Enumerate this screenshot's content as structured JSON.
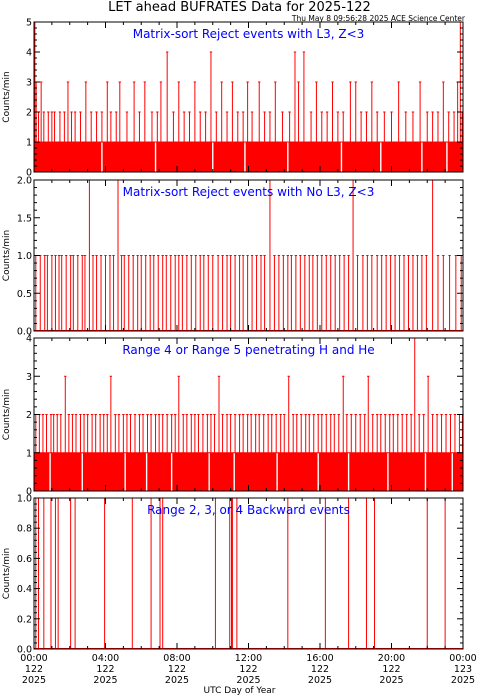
{
  "page": {
    "title": "LET ahead BUFRATES Data for 2025-122",
    "timestamp": "Thu May  8 09:56:28 2025 ACE Science Center",
    "x_axis_title": "UTC Day of Year"
  },
  "colors": {
    "data": "#ff0000",
    "annotation": "#0000ff",
    "axis": "#000000"
  },
  "chart_data": [
    {
      "type": "line",
      "title": "Matrix-sort Reject events with L3, Z<3",
      "ylabel": "Counts/min",
      "xlim": [
        0,
        24
      ],
      "ylim": [
        0,
        5
      ],
      "yticks": [
        0,
        1,
        2,
        3,
        4,
        5
      ],
      "ytick_labels": [
        "0",
        "1",
        "2",
        "3",
        "4",
        "5"
      ],
      "baseline": 1,
      "gaps_at_zero": [
        3.8,
        6.8,
        10.0,
        11.8,
        14.2,
        17.2,
        19.4,
        21.7,
        23.1
      ],
      "spikes": [
        [
          0.05,
          5
        ],
        [
          0.12,
          3
        ],
        [
          0.25,
          2
        ],
        [
          0.4,
          3
        ],
        [
          0.55,
          2
        ],
        [
          0.8,
          2
        ],
        [
          1.0,
          2
        ],
        [
          1.15,
          2
        ],
        [
          1.45,
          2
        ],
        [
          1.7,
          2
        ],
        [
          1.9,
          3
        ],
        [
          2.1,
          2
        ],
        [
          2.3,
          2
        ],
        [
          2.6,
          2
        ],
        [
          2.9,
          3
        ],
        [
          3.2,
          2
        ],
        [
          3.5,
          2
        ],
        [
          3.8,
          2
        ],
        [
          4.1,
          3
        ],
        [
          4.3,
          2
        ],
        [
          4.6,
          2
        ],
        [
          4.8,
          3
        ],
        [
          5.2,
          2
        ],
        [
          5.6,
          3
        ],
        [
          5.9,
          2
        ],
        [
          6.2,
          3
        ],
        [
          6.6,
          2
        ],
        [
          6.9,
          2
        ],
        [
          7.1,
          3
        ],
        [
          7.45,
          4
        ],
        [
          7.8,
          2
        ],
        [
          8.1,
          3
        ],
        [
          8.4,
          2
        ],
        [
          8.7,
          2
        ],
        [
          9.0,
          3
        ],
        [
          9.3,
          2
        ],
        [
          9.6,
          2
        ],
        [
          9.9,
          4
        ],
        [
          10.2,
          2
        ],
        [
          10.5,
          3
        ],
        [
          10.8,
          2
        ],
        [
          11.1,
          3
        ],
        [
          11.4,
          2
        ],
        [
          11.7,
          2
        ],
        [
          11.95,
          3
        ],
        [
          12.2,
          2
        ],
        [
          12.6,
          3
        ],
        [
          12.9,
          2
        ],
        [
          13.2,
          2
        ],
        [
          13.5,
          3
        ],
        [
          13.9,
          2
        ],
        [
          14.3,
          2
        ],
        [
          14.6,
          4
        ],
        [
          14.8,
          3
        ],
        [
          15.1,
          4
        ],
        [
          15.5,
          2
        ],
        [
          15.8,
          3
        ],
        [
          16.1,
          2
        ],
        [
          16.4,
          2
        ],
        [
          16.7,
          3
        ],
        [
          17.0,
          2
        ],
        [
          17.3,
          2
        ],
        [
          17.7,
          3
        ],
        [
          18.0,
          3
        ],
        [
          18.3,
          2
        ],
        [
          18.6,
          2
        ],
        [
          18.9,
          3
        ],
        [
          19.2,
          2
        ],
        [
          19.6,
          2
        ],
        [
          20.0,
          2
        ],
        [
          20.4,
          3
        ],
        [
          20.8,
          2
        ],
        [
          21.2,
          2
        ],
        [
          21.6,
          3
        ],
        [
          22.0,
          2
        ],
        [
          22.3,
          2
        ],
        [
          22.6,
          2
        ],
        [
          22.9,
          3
        ],
        [
          23.2,
          2
        ],
        [
          23.5,
          2
        ],
        [
          23.7,
          3
        ],
        [
          23.85,
          5
        ],
        [
          23.95,
          2
        ]
      ]
    },
    {
      "type": "line",
      "title": "Matrix-sort Reject events with No L3, Z<3",
      "ylabel": "Counts/min",
      "xlim": [
        0,
        24
      ],
      "ylim": [
        0,
        2
      ],
      "yticks": [
        0,
        0.5,
        1,
        1.5,
        2
      ],
      "ytick_labels": [
        "0.0",
        "0.5",
        "1.0",
        "1.5",
        "2.0"
      ],
      "baseline": 0,
      "spikes": [
        [
          0.1,
          1
        ],
        [
          0.35,
          1
        ],
        [
          0.6,
          1
        ],
        [
          0.75,
          1
        ],
        [
          1.0,
          1
        ],
        [
          1.2,
          1
        ],
        [
          1.4,
          1
        ],
        [
          1.55,
          1
        ],
        [
          1.8,
          1
        ],
        [
          2.05,
          1
        ],
        [
          2.2,
          1
        ],
        [
          2.45,
          1
        ],
        [
          2.7,
          1
        ],
        [
          2.85,
          1
        ],
        [
          3.1,
          2
        ],
        [
          3.3,
          1
        ],
        [
          3.5,
          1
        ],
        [
          3.75,
          1
        ],
        [
          4.0,
          1
        ],
        [
          4.25,
          1
        ],
        [
          4.45,
          1
        ],
        [
          4.7,
          2
        ],
        [
          4.9,
          1
        ],
        [
          5.05,
          1
        ],
        [
          5.3,
          1
        ],
        [
          5.55,
          1
        ],
        [
          5.8,
          1
        ],
        [
          6.0,
          1
        ],
        [
          6.25,
          1
        ],
        [
          6.5,
          1
        ],
        [
          6.7,
          1
        ],
        [
          6.95,
          1
        ],
        [
          7.2,
          1
        ],
        [
          7.4,
          1
        ],
        [
          7.65,
          1
        ],
        [
          7.9,
          1
        ],
        [
          8.1,
          1
        ],
        [
          8.3,
          1
        ],
        [
          8.55,
          1
        ],
        [
          8.8,
          1
        ],
        [
          9.05,
          1
        ],
        [
          9.3,
          1
        ],
        [
          9.5,
          1
        ],
        [
          9.75,
          1
        ],
        [
          10.0,
          1
        ],
        [
          10.3,
          1
        ],
        [
          10.55,
          1
        ],
        [
          10.8,
          1
        ],
        [
          11.0,
          1
        ],
        [
          11.25,
          1
        ],
        [
          11.5,
          1
        ],
        [
          11.7,
          1
        ],
        [
          11.95,
          1
        ],
        [
          12.2,
          1
        ],
        [
          12.45,
          1
        ],
        [
          12.7,
          1
        ],
        [
          12.9,
          1
        ],
        [
          13.2,
          2
        ],
        [
          13.45,
          1
        ],
        [
          13.7,
          1
        ],
        [
          13.95,
          1
        ],
        [
          14.2,
          1
        ],
        [
          14.4,
          1
        ],
        [
          14.65,
          1
        ],
        [
          14.9,
          1
        ],
        [
          15.15,
          1
        ],
        [
          15.4,
          1
        ],
        [
          15.6,
          1
        ],
        [
          15.85,
          1
        ],
        [
          16.1,
          1
        ],
        [
          16.35,
          1
        ],
        [
          16.6,
          1
        ],
        [
          16.85,
          1
        ],
        [
          17.1,
          1
        ],
        [
          17.35,
          1
        ],
        [
          17.6,
          1
        ],
        [
          17.85,
          2
        ],
        [
          18.1,
          1
        ],
        [
          18.4,
          1
        ],
        [
          18.65,
          1
        ],
        [
          18.9,
          1
        ],
        [
          19.2,
          1
        ],
        [
          19.45,
          1
        ],
        [
          19.7,
          1
        ],
        [
          19.95,
          1
        ],
        [
          20.2,
          1
        ],
        [
          20.45,
          1
        ],
        [
          20.7,
          1
        ],
        [
          20.95,
          1
        ],
        [
          21.2,
          1
        ],
        [
          21.45,
          1
        ],
        [
          21.7,
          1
        ],
        [
          21.95,
          1
        ],
        [
          22.3,
          2
        ],
        [
          22.6,
          1
        ],
        [
          22.9,
          1
        ],
        [
          23.25,
          1
        ],
        [
          23.6,
          1
        ],
        [
          23.9,
          1
        ]
      ]
    },
    {
      "type": "line",
      "title": "Range 4 or Range 5 penetrating H and He",
      "ylabel": "Counts/min",
      "xlim": [
        0,
        24
      ],
      "ylim": [
        0,
        4
      ],
      "yticks": [
        0,
        1,
        2,
        3,
        4
      ],
      "ytick_labels": [
        "0",
        "1",
        "2",
        "3",
        "4"
      ],
      "baseline": 1,
      "gaps_at_zero": [
        0.9,
        2.7,
        5.1,
        6.3,
        7.7,
        9.8,
        11.2,
        13.6,
        15.9,
        17.6,
        19.8,
        21.9,
        23.4
      ],
      "spikes": [
        [
          0.1,
          2
        ],
        [
          0.3,
          2
        ],
        [
          0.5,
          2
        ],
        [
          0.7,
          2
        ],
        [
          0.95,
          2
        ],
        [
          1.1,
          2
        ],
        [
          1.3,
          2
        ],
        [
          1.5,
          2
        ],
        [
          1.75,
          3
        ],
        [
          1.95,
          2
        ],
        [
          2.15,
          2
        ],
        [
          2.35,
          2
        ],
        [
          2.6,
          2
        ],
        [
          2.8,
          2
        ],
        [
          3.0,
          2
        ],
        [
          3.25,
          2
        ],
        [
          3.45,
          2
        ],
        [
          3.7,
          2
        ],
        [
          3.9,
          2
        ],
        [
          4.1,
          2
        ],
        [
          4.3,
          3
        ],
        [
          4.55,
          2
        ],
        [
          4.75,
          2
        ],
        [
          5.0,
          2
        ],
        [
          5.2,
          2
        ],
        [
          5.4,
          2
        ],
        [
          5.65,
          2
        ],
        [
          5.9,
          2
        ],
        [
          6.1,
          2
        ],
        [
          6.35,
          2
        ],
        [
          6.55,
          2
        ],
        [
          6.8,
          2
        ],
        [
          7.0,
          2
        ],
        [
          7.2,
          2
        ],
        [
          7.45,
          2
        ],
        [
          7.7,
          2
        ],
        [
          7.9,
          2
        ],
        [
          8.1,
          3
        ],
        [
          8.35,
          2
        ],
        [
          8.55,
          2
        ],
        [
          8.8,
          2
        ],
        [
          9.0,
          2
        ],
        [
          9.2,
          2
        ],
        [
          9.45,
          2
        ],
        [
          9.7,
          2
        ],
        [
          9.9,
          2
        ],
        [
          10.1,
          2
        ],
        [
          10.35,
          3
        ],
        [
          10.55,
          2
        ],
        [
          10.8,
          2
        ],
        [
          11.0,
          2
        ],
        [
          11.25,
          2
        ],
        [
          11.5,
          2
        ],
        [
          11.7,
          2
        ],
        [
          11.95,
          2
        ],
        [
          12.15,
          2
        ],
        [
          12.4,
          2
        ],
        [
          12.6,
          2
        ],
        [
          12.85,
          2
        ],
        [
          13.1,
          2
        ],
        [
          13.3,
          2
        ],
        [
          13.55,
          2
        ],
        [
          13.8,
          2
        ],
        [
          14.0,
          2
        ],
        [
          14.25,
          3
        ],
        [
          14.5,
          2
        ],
        [
          14.7,
          2
        ],
        [
          14.95,
          2
        ],
        [
          15.2,
          2
        ],
        [
          15.4,
          2
        ],
        [
          15.65,
          2
        ],
        [
          15.9,
          2
        ],
        [
          16.1,
          2
        ],
        [
          16.35,
          2
        ],
        [
          16.6,
          2
        ],
        [
          16.8,
          2
        ],
        [
          17.05,
          2
        ],
        [
          17.3,
          3
        ],
        [
          17.5,
          2
        ],
        [
          17.75,
          2
        ],
        [
          18.0,
          2
        ],
        [
          18.25,
          2
        ],
        [
          18.5,
          2
        ],
        [
          18.7,
          3
        ],
        [
          18.95,
          2
        ],
        [
          19.2,
          2
        ],
        [
          19.4,
          2
        ],
        [
          19.65,
          2
        ],
        [
          19.9,
          2
        ],
        [
          20.1,
          2
        ],
        [
          20.35,
          2
        ],
        [
          20.6,
          2
        ],
        [
          20.85,
          2
        ],
        [
          21.1,
          2
        ],
        [
          21.3,
          4
        ],
        [
          21.55,
          2
        ],
        [
          21.8,
          2
        ],
        [
          22.05,
          3
        ],
        [
          22.3,
          2
        ],
        [
          22.55,
          2
        ],
        [
          22.8,
          2
        ],
        [
          23.05,
          2
        ],
        [
          23.3,
          2
        ],
        [
          23.55,
          2
        ],
        [
          23.8,
          2
        ],
        [
          23.97,
          2
        ]
      ]
    },
    {
      "type": "line",
      "title": "Range 2, 3, or 4 Backward events",
      "ylabel": "Counts/min",
      "xlabel": "UTC Day of Year",
      "xlim": [
        0,
        24
      ],
      "ylim": [
        0,
        1
      ],
      "yticks": [
        0,
        0.2,
        0.4,
        0.6,
        0.8,
        1.0
      ],
      "ytick_labels": [
        "0.0",
        "0.2",
        "0.4",
        "0.6",
        "0.8",
        "1.0"
      ],
      "xticks": [
        0,
        4,
        8,
        12,
        16,
        20,
        24
      ],
      "xtick_labels": [
        [
          "00:00",
          "122",
          "2025"
        ],
        [
          "04:00",
          "122",
          "2025"
        ],
        [
          "08:00",
          "122",
          "2025"
        ],
        [
          "12:00",
          "122",
          "2025"
        ],
        [
          "16:00",
          "122",
          "2025"
        ],
        [
          "20:00",
          "122",
          "2025"
        ],
        [
          "00:00",
          "123",
          "2025"
        ]
      ],
      "baseline": 0,
      "spikes": [
        [
          0.1,
          1
        ],
        [
          0.25,
          1
        ],
        [
          0.55,
          1
        ],
        [
          0.95,
          1
        ],
        [
          1.2,
          1
        ],
        [
          1.35,
          1
        ],
        [
          2.05,
          1
        ],
        [
          2.3,
          1
        ],
        [
          3.95,
          1
        ],
        [
          5.5,
          1
        ],
        [
          6.55,
          1
        ],
        [
          7.05,
          1
        ],
        [
          7.2,
          1
        ],
        [
          10.15,
          1
        ],
        [
          10.95,
          1
        ],
        [
          11.05,
          1
        ],
        [
          11.1,
          1
        ],
        [
          11.35,
          1
        ],
        [
          14.2,
          1
        ],
        [
          16.3,
          1
        ],
        [
          17.6,
          1
        ],
        [
          18.6,
          1
        ],
        [
          19.05,
          1
        ],
        [
          22.0,
          1
        ],
        [
          23.0,
          1
        ]
      ]
    }
  ]
}
